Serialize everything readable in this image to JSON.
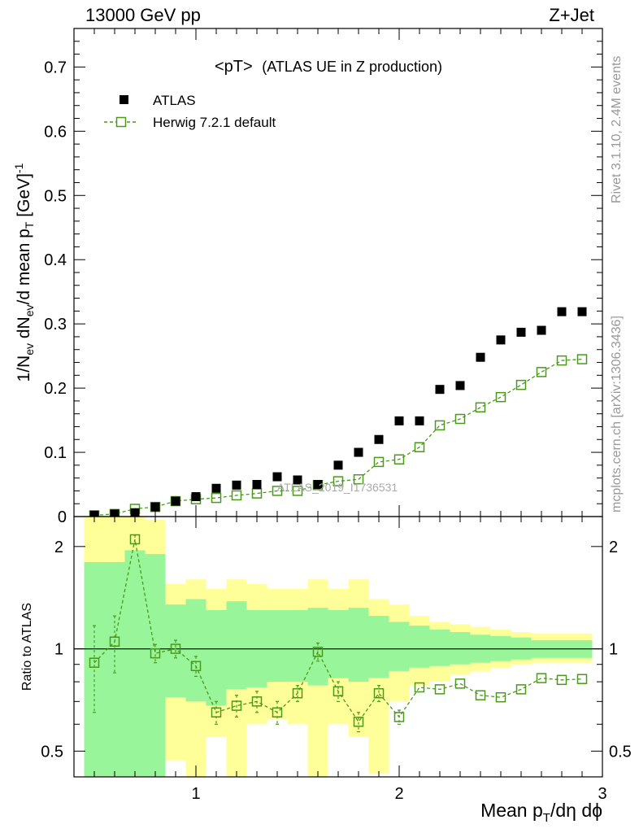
{
  "header": {
    "left_label": "13000 GeV pp",
    "right_label": "Z+Jet"
  },
  "side": {
    "rivet": "Rivet 3.1.10,  2.4M events",
    "mcplots": "mcplots.cern.ch [arXiv:1306.3436]"
  },
  "main": {
    "title_part1": "<pT>",
    "title_part2": "(ATLAS UE in Z production)",
    "watermark": "ATLAS_2019_I1736531",
    "ylabel": "1/N_ev dN_ev/d mean p_T [GeV]^-1",
    "ylabel_parts": {
      "a": "1/N",
      "b": "ev",
      "c": " dN",
      "d": "ev",
      "e": "/d mean p",
      "f": "T",
      "g": " [GeV]",
      "h": "-1"
    },
    "legend": {
      "atlas": "ATLAS",
      "herwig": "Herwig 7.2.1 default"
    },
    "yticks": [
      "0",
      "0.1",
      "0.2",
      "0.3",
      "0.4",
      "0.5",
      "0.6",
      "0.7"
    ]
  },
  "ratio": {
    "ylabel": "Ratio to ATLAS",
    "yticks": [
      "0.5",
      "1",
      "2"
    ]
  },
  "xaxis": {
    "label": "Mean p_T/dη dϕ",
    "label_parts": {
      "a": "Mean p",
      "b": "T",
      "c": "/dη dϕ"
    },
    "ticks": [
      "1",
      "2",
      "3"
    ]
  },
  "colors": {
    "atlas": "#000000",
    "herwig": "#4a9a1a",
    "band_inner": "#99f599",
    "band_outer": "#ffff99"
  },
  "chart_data": [
    {
      "type": "scatter",
      "panel": "main",
      "xlim": [
        0.4,
        3.0
      ],
      "ylim": [
        0,
        0.76
      ],
      "series": [
        {
          "name": "ATLAS",
          "marker": "filled-square",
          "x": [
            0.5,
            0.6,
            0.7,
            0.8,
            0.9,
            1.0,
            1.1,
            1.2,
            1.3,
            1.4,
            1.5,
            1.6,
            1.7,
            1.8,
            1.9,
            2.0,
            2.1,
            2.2,
            2.3,
            2.4,
            2.5,
            2.6,
            2.7,
            2.8,
            2.9
          ],
          "y": [
            0.002,
            0.004,
            0.006,
            0.015,
            0.024,
            0.031,
            0.044,
            0.049,
            0.05,
            0.062,
            0.057,
            0.05,
            0.08,
            0.1,
            0.12,
            0.149,
            0.149,
            0.198,
            0.204,
            0.248,
            0.275,
            0.287,
            0.29,
            0.319,
            0.319
          ]
        },
        {
          "name": "Herwig 7.2.1 default",
          "marker": "open-square-dashed-line",
          "x": [
            0.5,
            0.6,
            0.7,
            0.8,
            0.9,
            1.0,
            1.1,
            1.2,
            1.3,
            1.4,
            1.5,
            1.6,
            1.7,
            1.8,
            1.9,
            2.0,
            2.1,
            2.2,
            2.3,
            2.4,
            2.5,
            2.6,
            2.7,
            2.8,
            2.9
          ],
          "y": [
            0.002,
            0.004,
            0.012,
            0.015,
            0.024,
            0.027,
            0.029,
            0.033,
            0.036,
            0.04,
            0.04,
            0.049,
            0.055,
            0.058,
            0.085,
            0.089,
            0.108,
            0.142,
            0.152,
            0.17,
            0.186,
            0.205,
            0.225,
            0.243,
            0.245
          ]
        }
      ]
    },
    {
      "type": "line",
      "panel": "ratio",
      "ylabel": "Ratio to ATLAS",
      "yscale": "log",
      "ylim": [
        0.42,
        2.45
      ],
      "reference_line": 1,
      "bands": {
        "x_edges": [
          0.45,
          0.55,
          0.65,
          0.75,
          0.85,
          0.95,
          1.05,
          1.15,
          1.25,
          1.35,
          1.45,
          1.55,
          1.65,
          1.75,
          1.85,
          1.95,
          2.05,
          2.15,
          2.25,
          2.35,
          2.45,
          2.55,
          2.65,
          2.75,
          2.85,
          2.95
        ],
        "inner_low": [
          0.42,
          0.42,
          0.42,
          0.42,
          0.72,
          0.7,
          0.68,
          0.76,
          0.77,
          0.8,
          0.8,
          0.78,
          0.82,
          0.8,
          0.82,
          0.86,
          0.88,
          0.89,
          0.9,
          0.91,
          0.92,
          0.93,
          0.94,
          0.94,
          0.94
        ],
        "inner_high": [
          1.8,
          1.8,
          1.95,
          1.9,
          1.35,
          1.4,
          1.3,
          1.38,
          1.3,
          1.3,
          1.3,
          1.32,
          1.3,
          1.32,
          1.25,
          1.2,
          1.17,
          1.14,
          1.12,
          1.1,
          1.09,
          1.08,
          1.06,
          1.06,
          1.06
        ],
        "outer_low": [
          0.42,
          0.42,
          0.42,
          0.42,
          0.47,
          0.42,
          0.55,
          0.42,
          0.6,
          0.62,
          0.6,
          0.42,
          0.6,
          0.55,
          0.43,
          0.7,
          0.78,
          0.8,
          0.84,
          0.86,
          0.88,
          0.9,
          0.91,
          0.91,
          0.91
        ],
        "outer_high": [
          2.45,
          2.45,
          2.45,
          2.4,
          1.55,
          1.6,
          1.5,
          1.6,
          1.55,
          1.5,
          1.5,
          1.6,
          1.5,
          1.6,
          1.4,
          1.35,
          1.25,
          1.2,
          1.18,
          1.16,
          1.14,
          1.12,
          1.11,
          1.11,
          1.11
        ]
      },
      "series": [
        {
          "name": "Herwig 7.2.1 default",
          "x": [
            0.5,
            0.6,
            0.7,
            0.8,
            0.9,
            1.0,
            1.1,
            1.2,
            1.3,
            1.4,
            1.5,
            1.6,
            1.7,
            1.8,
            1.9,
            2.0,
            2.1,
            2.2,
            2.3,
            2.4,
            2.5,
            2.6,
            2.7,
            2.8,
            2.9
          ],
          "y": [
            0.91,
            1.05,
            2.1,
            0.97,
            1.0,
            0.89,
            0.65,
            0.68,
            0.7,
            0.65,
            0.74,
            0.98,
            0.75,
            0.61,
            0.74,
            0.63,
            0.77,
            0.76,
            0.79,
            0.73,
            0.72,
            0.76,
            0.82,
            0.81,
            0.815
          ],
          "err": [
            0.26,
            0.2,
            0.06,
            0.06,
            0.06,
            0.06,
            0.05,
            0.05,
            0.05,
            0.05,
            0.04,
            0.06,
            0.05,
            0.04,
            0.04,
            0.03,
            0.02,
            0.02,
            0.02,
            0.015,
            0.015,
            0.015,
            0.015,
            0.015,
            0.015
          ]
        }
      ]
    }
  ]
}
